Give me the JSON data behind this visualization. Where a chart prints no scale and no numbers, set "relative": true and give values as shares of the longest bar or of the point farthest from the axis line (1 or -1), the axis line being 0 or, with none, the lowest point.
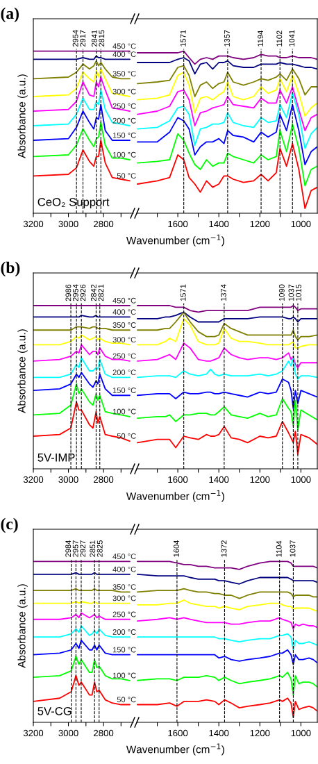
{
  "chart_data": [
    {
      "type": "line",
      "title": "(a)",
      "ylabel": "Absorbance (a.u.)",
      "annotations": [
        "CeO₂ Support"
      ],
      "relative": true,
      "tick_labels": "x",
      "grid": false,
      "line_style": "solid",
      "xlim": [
        3200,
        2630
      ],
      "xticks": [
        3200,
        {
          "value": 3100,
          "label": null
        },
        3000,
        {
          "value": 2900,
          "label": null
        },
        2800,
        {
          "value": 2700,
          "label": null
        }
      ],
      "x": [
        3200,
        3000,
        2954,
        2917,
        2880,
        2855,
        2841,
        2828,
        2815,
        2790,
        2750,
        2700,
        2650
      ],
      "ref_lines": [
        {
          "axis": "x",
          "value": 2954,
          "label": "2954",
          "line_style": "dashed",
          "color": "#000000"
        },
        {
          "axis": "x",
          "value": 2917,
          "label": "2917",
          "line_style": "dashed",
          "color": "#000000"
        },
        {
          "axis": "x",
          "value": 2841,
          "label": "2841",
          "line_style": "dashed",
          "color": "#000000"
        },
        {
          "axis": "x",
          "value": 2815,
          "label": "2815",
          "line_style": "dashed",
          "color": "#000000"
        }
      ],
      "series": [
        {
          "name": "450 °C",
          "color": "#800080",
          "values": [
            1.0,
            1.0,
            1.0,
            1.0,
            1.0,
            1.0,
            1.0,
            1.0,
            1.0,
            1.0,
            1.0,
            1.0,
            1.0
          ]
        },
        {
          "name": "400 °C",
          "color": "#000080",
          "values": [
            0.95,
            0.95,
            0.95,
            0.96,
            0.95,
            0.95,
            0.97,
            0.96,
            0.96,
            0.95,
            0.95,
            0.95,
            0.95
          ]
        },
        {
          "name": "350 °C",
          "color": "#808000",
          "values": [
            0.83,
            0.84,
            0.87,
            0.92,
            0.89,
            0.91,
            0.94,
            0.91,
            0.93,
            0.89,
            0.84,
            0.83,
            0.83
          ]
        },
        {
          "name": "300 °C",
          "color": "#ffff00",
          "values": [
            0.72,
            0.73,
            0.77,
            0.87,
            0.83,
            0.81,
            0.88,
            0.84,
            0.89,
            0.83,
            0.74,
            0.73,
            0.72
          ]
        },
        {
          "name": "250 °C",
          "color": "#ff00ff",
          "values": [
            0.63,
            0.64,
            0.69,
            0.81,
            0.73,
            0.72,
            0.81,
            0.78,
            0.84,
            0.76,
            0.65,
            0.64,
            0.63
          ]
        },
        {
          "name": "200 °C",
          "color": "#00ffff",
          "values": [
            0.54,
            0.55,
            0.61,
            0.71,
            0.64,
            0.64,
            0.69,
            0.67,
            0.76,
            0.64,
            0.56,
            0.55,
            0.54
          ]
        },
        {
          "name": "150 °C",
          "color": "#0000ff",
          "values": [
            0.45,
            0.46,
            0.53,
            0.63,
            0.56,
            0.52,
            0.59,
            0.58,
            0.67,
            0.51,
            0.45,
            0.45,
            0.45
          ]
        },
        {
          "name": "100 °C",
          "color": "#00ff00",
          "values": [
            0.35,
            0.36,
            0.42,
            0.52,
            0.45,
            0.41,
            0.46,
            0.47,
            0.56,
            0.42,
            0.34,
            0.34,
            0.33
          ]
        },
        {
          "name": "50 °C",
          "color": "#ff0000",
          "values": [
            0.23,
            0.24,
            0.28,
            0.39,
            0.32,
            0.29,
            0.35,
            0.35,
            0.45,
            0.31,
            0.22,
            0.21,
            0.2
          ]
        }
      ]
    },
    {
      "type": "line",
      "xlabel": "Wavenumber (cm$^{−1}$)",
      "relative": true,
      "tick_labels": "x",
      "grid": false,
      "line_style": "solid",
      "xlim": [
        1800,
        920
      ],
      "xticks": [
        {
          "value": 1700,
          "label": null
        },
        1600,
        {
          "value": 1500,
          "label": null
        },
        1400,
        {
          "value": 1300,
          "label": null
        },
        1200,
        {
          "value": 1100,
          "label": null
        },
        1000
      ],
      "x": [
        1797,
        1700,
        1640,
        1600,
        1571,
        1545,
        1517,
        1490,
        1460,
        1430,
        1400,
        1375,
        1357,
        1330,
        1280,
        1230,
        1194,
        1160,
        1120,
        1102,
        1070,
        1041,
        1010,
        980,
        950,
        920
      ],
      "ref_lines": [
        {
          "axis": "x",
          "value": 1571,
          "label": "1571",
          "line_style": "dashed",
          "color": "#000000"
        },
        {
          "axis": "x",
          "value": 1357,
          "label": "1357",
          "line_style": "dashed",
          "color": "#000000"
        },
        {
          "axis": "x",
          "value": 1194,
          "label": "1194",
          "line_style": "dashed",
          "color": "#000000"
        },
        {
          "axis": "x",
          "value": 1102,
          "label": "1102",
          "line_style": "dashed",
          "color": "#000000"
        },
        {
          "axis": "x",
          "value": 1041,
          "label": "1041",
          "line_style": "dashed",
          "color": "#000000"
        }
      ],
      "series": [
        {
          "color": "#800080",
          "values": [
            0.99,
            0.99,
            0.99,
            0.99,
            1.0,
            0.96,
            0.92,
            0.95,
            0.96,
            0.95,
            0.97,
            0.97,
            0.97,
            0.96,
            0.95,
            0.96,
            0.98,
            0.97,
            0.97,
            0.96,
            0.96,
            0.97,
            0.96,
            0.96,
            0.96,
            0.95
          ]
        },
        {
          "color": "#000080",
          "values": [
            0.93,
            0.93,
            0.93,
            0.95,
            0.96,
            0.94,
            0.86,
            0.92,
            0.93,
            0.89,
            0.93,
            0.93,
            0.94,
            0.91,
            0.9,
            0.9,
            0.92,
            0.92,
            0.92,
            0.93,
            0.92,
            0.92,
            0.91,
            0.9,
            0.9,
            0.89
          ]
        },
        {
          "color": "#808000",
          "values": [
            0.8,
            0.81,
            0.82,
            0.9,
            0.91,
            0.85,
            0.72,
            0.79,
            0.81,
            0.77,
            0.8,
            0.81,
            0.87,
            0.81,
            0.79,
            0.81,
            0.83,
            0.82,
            0.84,
            0.86,
            0.82,
            0.89,
            0.83,
            0.73,
            0.78,
            0.78
          ]
        },
        {
          "color": "#ffff00",
          "values": [
            0.7,
            0.71,
            0.73,
            0.85,
            0.87,
            0.79,
            0.62,
            0.71,
            0.72,
            0.7,
            0.73,
            0.75,
            0.81,
            0.72,
            0.7,
            0.72,
            0.78,
            0.74,
            0.76,
            0.83,
            0.75,
            0.85,
            0.74,
            0.6,
            0.65,
            0.68
          ]
        },
        {
          "color": "#ff00ff",
          "values": [
            0.61,
            0.63,
            0.66,
            0.75,
            0.76,
            0.7,
            0.54,
            0.62,
            0.63,
            0.65,
            0.66,
            0.67,
            0.72,
            0.67,
            0.66,
            0.65,
            0.71,
            0.68,
            0.68,
            0.76,
            0.68,
            0.78,
            0.64,
            0.51,
            0.59,
            0.61
          ]
        },
        {
          "color": "#00ffff",
          "values": [
            0.52,
            0.53,
            0.57,
            0.65,
            0.66,
            0.61,
            0.42,
            0.52,
            0.53,
            0.55,
            0.55,
            0.56,
            0.62,
            0.56,
            0.54,
            0.53,
            0.59,
            0.56,
            0.57,
            0.67,
            0.59,
            0.74,
            0.61,
            0.4,
            0.49,
            0.53
          ]
        },
        {
          "color": "#0000ff",
          "values": [
            0.44,
            0.44,
            0.5,
            0.59,
            0.57,
            0.52,
            0.36,
            0.41,
            0.44,
            0.44,
            0.46,
            0.43,
            0.51,
            0.48,
            0.47,
            0.44,
            0.5,
            0.47,
            0.5,
            0.61,
            0.51,
            0.67,
            0.51,
            0.3,
            0.38,
            0.41
          ]
        },
        {
          "color": "#00ff00",
          "values": [
            0.31,
            0.32,
            0.33,
            0.49,
            0.45,
            0.37,
            0.3,
            0.27,
            0.33,
            0.29,
            0.31,
            0.31,
            0.37,
            0.35,
            0.33,
            0.31,
            0.36,
            0.33,
            0.35,
            0.51,
            0.38,
            0.55,
            0.4,
            0.17,
            0.27,
            0.29
          ]
        },
        {
          "color": "#ff0000",
          "values": [
            0.18,
            0.2,
            0.22,
            0.36,
            0.33,
            0.22,
            0.18,
            0.13,
            0.2,
            0.16,
            0.18,
            0.23,
            0.23,
            0.21,
            0.19,
            0.2,
            0.24,
            0.2,
            0.25,
            0.4,
            0.29,
            0.43,
            0.27,
            0.03,
            0.14,
            0.16
          ]
        }
      ]
    },
    {
      "type": "line",
      "title": "(b)",
      "ylabel": "Absorbance (a.u.)",
      "annotations": [
        "5V-IMP"
      ],
      "relative": true,
      "tick_labels": "x",
      "grid": false,
      "line_style": "solid",
      "xlim": [
        3200,
        2630
      ],
      "xticks": [
        3200,
        {
          "value": 3100,
          "label": null
        },
        3000,
        {
          "value": 2900,
          "label": null
        },
        2800,
        {
          "value": 2700,
          "label": null
        }
      ],
      "x": [
        3200,
        3050,
        2986,
        2954,
        2940,
        2926,
        2880,
        2860,
        2842,
        2832,
        2821,
        2790,
        2750,
        2700,
        2650
      ],
      "ref_lines": [
        {
          "axis": "x",
          "value": 2986,
          "label": "2986",
          "line_style": "dashed",
          "color": "#000000"
        },
        {
          "axis": "x",
          "value": 2954,
          "label": "2954",
          "line_style": "dashed",
          "color": "#000000"
        },
        {
          "axis": "x",
          "value": 2926,
          "label": "2926",
          "line_style": "dashed",
          "color": "#000000"
        },
        {
          "axis": "x",
          "value": 2842,
          "label": "2842",
          "line_style": "dashed",
          "color": "#000000"
        },
        {
          "axis": "x",
          "value": 2821,
          "label": "2821",
          "line_style": "dashed",
          "color": "#000000"
        }
      ],
      "series": [
        {
          "name": "450 °C",
          "color": "#800080",
          "values": [
            1.0,
            1.0,
            1.0,
            1.0,
            1.0,
            1.0,
            1.0,
            1.0,
            1.0,
            1.0,
            1.0,
            1.0,
            1.0,
            1.0,
            1.0
          ]
        },
        {
          "name": "400 °C",
          "color": "#000080",
          "values": [
            0.93,
            0.93,
            0.93,
            0.93,
            0.93,
            0.94,
            0.93,
            0.93,
            0.94,
            0.93,
            0.93,
            0.93,
            0.93,
            0.93,
            0.93
          ]
        },
        {
          "name": "350 °C",
          "color": "#808000",
          "values": [
            0.85,
            0.85,
            0.85,
            0.87,
            0.87,
            0.87,
            0.86,
            0.87,
            0.87,
            0.86,
            0.86,
            0.86,
            0.85,
            0.85,
            0.85
          ]
        },
        {
          "name": "300 °C",
          "color": "#ffff00",
          "values": [
            0.76,
            0.76,
            0.78,
            0.81,
            0.8,
            0.82,
            0.79,
            0.8,
            0.81,
            0.79,
            0.8,
            0.78,
            0.77,
            0.77,
            0.76
          ]
        },
        {
          "name": "250 °C",
          "color": "#ff00ff",
          "values": [
            0.66,
            0.67,
            0.69,
            0.72,
            0.71,
            0.76,
            0.7,
            0.72,
            0.72,
            0.7,
            0.74,
            0.69,
            0.67,
            0.67,
            0.66
          ]
        },
        {
          "name": "200 °C",
          "color": "#00ffff",
          "values": [
            0.56,
            0.56,
            0.58,
            0.64,
            0.62,
            0.68,
            0.6,
            0.6,
            0.62,
            0.61,
            0.67,
            0.58,
            0.56,
            0.56,
            0.56
          ]
        },
        {
          "name": "150 °C",
          "color": "#0000ff",
          "values": [
            0.48,
            0.49,
            0.52,
            0.58,
            0.56,
            0.59,
            0.52,
            0.5,
            0.54,
            0.52,
            0.58,
            0.49,
            0.45,
            0.45,
            0.45
          ]
        },
        {
          "name": "100 °C",
          "color": "#00ff00",
          "values": [
            0.33,
            0.34,
            0.39,
            0.52,
            0.46,
            0.49,
            0.41,
            0.39,
            0.46,
            0.42,
            0.45,
            0.35,
            0.34,
            0.33,
            0.32
          ]
        },
        {
          "name": "50 °C",
          "color": "#ff0000",
          "values": [
            0.2,
            0.21,
            0.25,
            0.41,
            0.36,
            0.36,
            0.27,
            0.25,
            0.35,
            0.28,
            0.32,
            0.21,
            0.2,
            0.19,
            0.17
          ]
        }
      ]
    },
    {
      "type": "line",
      "xlabel": "Wavenumber (cm$^{−1}$)",
      "relative": true,
      "tick_labels": "x",
      "grid": false,
      "line_style": "solid",
      "xlim": [
        1800,
        920
      ],
      "xticks": [
        {
          "value": 1700,
          "label": null
        },
        1600,
        {
          "value": 1500,
          "label": null
        },
        1400,
        {
          "value": 1300,
          "label": null
        },
        1200,
        {
          "value": 1100,
          "label": null
        },
        1000
      ],
      "x": [
        1797,
        1700,
        1660,
        1640,
        1610,
        1571,
        1540,
        1500,
        1460,
        1440,
        1420,
        1400,
        1374,
        1340,
        1300,
        1260,
        1200,
        1160,
        1120,
        1090,
        1060,
        1048,
        1037,
        1027,
        1015,
        1000,
        960,
        920
      ],
      "ref_lines": [
        {
          "axis": "x",
          "value": 1571,
          "label": "1571",
          "line_style": "dashed",
          "color": "#000000"
        },
        {
          "axis": "x",
          "value": 1374,
          "label": "1374",
          "line_style": "dashed",
          "color": "#000000"
        },
        {
          "axis": "x",
          "value": 1090,
          "label": "1090",
          "line_style": "dashed",
          "color": "#000000"
        },
        {
          "axis": "x",
          "value": 1037,
          "label": "1037",
          "line_style": "dashed",
          "color": "#000000"
        },
        {
          "axis": "x",
          "value": 1015,
          "label": "1015",
          "line_style": "dashed",
          "color": "#000000"
        }
      ],
      "series": [
        {
          "color": "#800080",
          "values": [
            1.0,
            1.0,
            1.0,
            1.0,
            0.99,
            0.99,
            0.97,
            0.96,
            0.97,
            0.97,
            0.97,
            0.97,
            0.97,
            0.97,
            0.97,
            0.97,
            0.99,
            0.99,
            0.99,
            0.99,
            0.99,
            0.99,
            1.0,
            0.99,
            0.97,
            0.98,
            0.98,
            0.98
          ]
        },
        {
          "color": "#000080",
          "values": [
            0.92,
            0.92,
            0.93,
            0.93,
            0.94,
            0.96,
            0.93,
            0.9,
            0.9,
            0.9,
            0.9,
            0.9,
            0.92,
            0.92,
            0.92,
            0.92,
            0.93,
            0.93,
            0.93,
            0.93,
            0.92,
            0.92,
            0.93,
            0.92,
            0.9,
            0.92,
            0.92,
            0.92
          ]
        },
        {
          "color": "#808000",
          "values": [
            0.85,
            0.85,
            0.86,
            0.86,
            0.9,
            0.96,
            0.9,
            0.84,
            0.81,
            0.81,
            0.81,
            0.82,
            0.89,
            0.86,
            0.84,
            0.82,
            0.82,
            0.82,
            0.82,
            0.82,
            0.82,
            0.82,
            0.85,
            0.81,
            0.79,
            0.81,
            0.81,
            0.82
          ]
        },
        {
          "color": "#ffff00",
          "values": [
            0.76,
            0.76,
            0.78,
            0.8,
            0.78,
            0.92,
            0.88,
            0.78,
            0.76,
            0.76,
            0.76,
            0.77,
            0.86,
            0.8,
            0.78,
            0.78,
            0.77,
            0.76,
            0.76,
            0.76,
            0.76,
            0.77,
            0.78,
            0.74,
            0.74,
            0.75,
            0.76,
            0.76
          ]
        },
        {
          "color": "#ff00ff",
          "values": [
            0.66,
            0.67,
            0.69,
            0.7,
            0.67,
            0.77,
            0.74,
            0.67,
            0.66,
            0.66,
            0.67,
            0.68,
            0.74,
            0.7,
            0.68,
            0.67,
            0.68,
            0.68,
            0.67,
            0.68,
            0.71,
            0.67,
            0.69,
            0.64,
            0.62,
            0.65,
            0.65,
            0.65
          ]
        },
        {
          "color": "#00ffff",
          "values": [
            0.56,
            0.57,
            0.57,
            0.57,
            0.56,
            0.6,
            0.58,
            0.57,
            0.58,
            0.61,
            0.58,
            0.57,
            0.58,
            0.57,
            0.57,
            0.57,
            0.58,
            0.57,
            0.58,
            0.6,
            0.66,
            0.63,
            0.69,
            0.58,
            0.55,
            0.57,
            0.57,
            0.56
          ]
        },
        {
          "color": "#0000ff",
          "values": [
            0.45,
            0.46,
            0.46,
            0.46,
            0.43,
            0.47,
            0.46,
            0.46,
            0.47,
            0.47,
            0.46,
            0.46,
            0.47,
            0.46,
            0.45,
            0.44,
            0.47,
            0.46,
            0.47,
            0.55,
            0.53,
            0.48,
            0.37,
            0.48,
            0.4,
            0.48,
            0.46,
            0.44
          ]
        },
        {
          "color": "#00ff00",
          "values": [
            0.31,
            0.32,
            0.32,
            0.33,
            0.29,
            0.33,
            0.33,
            0.34,
            0.34,
            0.33,
            0.33,
            0.35,
            0.38,
            0.33,
            0.32,
            0.31,
            0.34,
            0.32,
            0.33,
            0.43,
            0.37,
            0.35,
            0.26,
            0.42,
            0.24,
            0.36,
            0.33,
            0.3
          ]
        },
        {
          "color": "#ff0000",
          "values": [
            0.16,
            0.18,
            0.18,
            0.18,
            0.13,
            0.2,
            0.19,
            0.18,
            0.21,
            0.2,
            0.2,
            0.21,
            0.26,
            0.19,
            0.18,
            0.16,
            0.2,
            0.19,
            0.2,
            0.29,
            0.22,
            0.19,
            0.16,
            0.23,
            0.09,
            0.21,
            0.19,
            0.15
          ]
        }
      ]
    },
    {
      "type": "line",
      "title": "(c)",
      "ylabel": "Absorbance (a.u.)",
      "annotations": [
        "5V-CG"
      ],
      "relative": true,
      "tick_labels": "x",
      "grid": false,
      "line_style": "solid",
      "xlim": [
        3200,
        2630
      ],
      "xticks": [
        3200,
        {
          "value": 3100,
          "label": null
        },
        3000,
        {
          "value": 2900,
          "label": null
        },
        2800,
        {
          "value": 2700,
          "label": null
        }
      ],
      "x": [
        3200,
        3050,
        2984,
        2957,
        2940,
        2927,
        2880,
        2865,
        2851,
        2838,
        2825,
        2790,
        2750,
        2700,
        2650
      ],
      "ref_lines": [
        {
          "axis": "x",
          "value": 2984,
          "label": "2984",
          "line_style": "dashed",
          "color": "#000000"
        },
        {
          "axis": "x",
          "value": 2957,
          "label": "2957",
          "line_style": "dashed",
          "color": "#000000"
        },
        {
          "axis": "x",
          "value": 2927,
          "label": "2927",
          "line_style": "dashed",
          "color": "#000000"
        },
        {
          "axis": "x",
          "value": 2851,
          "label": "2851",
          "line_style": "dashed",
          "color": "#000000"
        },
        {
          "axis": "x",
          "value": 2825,
          "label": "2825",
          "line_style": "dashed",
          "color": "#000000"
        }
      ],
      "series": [
        {
          "name": "450 °C",
          "color": "#800080",
          "values": [
            1.0,
            1.0,
            1.0,
            1.0,
            1.0,
            1.0,
            1.0,
            1.0,
            1.0,
            1.0,
            1.0,
            1.0,
            1.0,
            1.0,
            1.0
          ]
        },
        {
          "name": "400 °C",
          "color": "#000080",
          "values": [
            0.92,
            0.92,
            0.92,
            0.93,
            0.92,
            0.92,
            0.92,
            0.92,
            0.93,
            0.92,
            0.92,
            0.92,
            0.92,
            0.92,
            0.92
          ]
        },
        {
          "name": "350 °C",
          "color": "#808000",
          "values": [
            0.82,
            0.82,
            0.82,
            0.83,
            0.82,
            0.82,
            0.82,
            0.82,
            0.83,
            0.82,
            0.82,
            0.82,
            0.82,
            0.81,
            0.81
          ]
        },
        {
          "name": "300 °C",
          "color": "#ffff00",
          "values": [
            0.74,
            0.74,
            0.74,
            0.75,
            0.74,
            0.75,
            0.74,
            0.74,
            0.75,
            0.74,
            0.74,
            0.74,
            0.74,
            0.74,
            0.74
          ]
        },
        {
          "name": "250 °C",
          "color": "#ff00ff",
          "values": [
            0.64,
            0.64,
            0.65,
            0.67,
            0.65,
            0.68,
            0.65,
            0.66,
            0.67,
            0.65,
            0.66,
            0.64,
            0.64,
            0.64,
            0.64
          ]
        },
        {
          "name": "200 °C",
          "color": "#00ffff",
          "values": [
            0.53,
            0.53,
            0.55,
            0.58,
            0.56,
            0.6,
            0.54,
            0.55,
            0.57,
            0.55,
            0.58,
            0.54,
            0.53,
            0.53,
            0.53
          ]
        },
        {
          "name": "150 °C",
          "color": "#0000ff",
          "values": [
            0.42,
            0.43,
            0.45,
            0.49,
            0.46,
            0.51,
            0.45,
            0.45,
            0.48,
            0.45,
            0.48,
            0.43,
            0.42,
            0.42,
            0.42
          ]
        },
        {
          "name": "100 °C",
          "color": "#00ff00",
          "values": [
            0.28,
            0.29,
            0.32,
            0.41,
            0.36,
            0.39,
            0.31,
            0.31,
            0.39,
            0.34,
            0.35,
            0.29,
            0.27,
            0.27,
            0.26
          ]
        },
        {
          "name": "50 °C",
          "color": "#ff0000",
          "values": [
            0.13,
            0.15,
            0.19,
            0.29,
            0.23,
            0.25,
            0.17,
            0.17,
            0.25,
            0.19,
            0.2,
            0.14,
            0.12,
            0.11,
            0.11
          ]
        }
      ]
    },
    {
      "type": "line",
      "xlabel": "Wavenumber (cm$^{−1}$)",
      "relative": true,
      "tick_labels": "x",
      "grid": false,
      "line_style": "solid",
      "xlim": [
        1800,
        920
      ],
      "xticks": [
        {
          "value": 1700,
          "label": null
        },
        1600,
        {
          "value": 1500,
          "label": null
        },
        1400,
        {
          "value": 1300,
          "label": null
        },
        1200,
        {
          "value": 1100,
          "label": null
        },
        1000
      ],
      "x": [
        1797,
        1700,
        1640,
        1604,
        1570,
        1540,
        1500,
        1460,
        1420,
        1400,
        1372,
        1340,
        1300,
        1260,
        1200,
        1150,
        1104,
        1090,
        1065,
        1048,
        1037,
        1027,
        1010,
        990,
        960,
        940,
        920
      ],
      "ref_lines": [
        {
          "axis": "x",
          "value": 1604,
          "label": "1604",
          "line_style": "dashed",
          "color": "#000000"
        },
        {
          "axis": "x",
          "value": 1372,
          "label": "1372",
          "line_style": "dashed",
          "color": "#000000"
        },
        {
          "axis": "x",
          "value": 1104,
          "label": "1104",
          "line_style": "dashed",
          "color": "#000000"
        },
        {
          "axis": "x",
          "value": 1037,
          "label": "1037",
          "line_style": "dashed",
          "color": "#000000"
        }
      ],
      "series": [
        {
          "color": "#800080",
          "values": [
            1.0,
            1.0,
            1.0,
            0.99,
            0.98,
            0.98,
            0.97,
            0.97,
            0.96,
            0.96,
            0.96,
            0.96,
            0.95,
            0.97,
            0.99,
            1.0,
            1.0,
            1.0,
            1.0,
            0.99,
            0.97,
            0.97,
            0.97,
            0.97,
            0.97,
            0.97,
            0.96
          ]
        },
        {
          "color": "#000080",
          "values": [
            0.92,
            0.91,
            0.91,
            0.91,
            0.91,
            0.9,
            0.89,
            0.89,
            0.89,
            0.88,
            0.88,
            0.87,
            0.86,
            0.88,
            0.9,
            0.9,
            0.9,
            0.9,
            0.9,
            0.89,
            0.88,
            0.88,
            0.88,
            0.88,
            0.88,
            0.88,
            0.87
          ]
        },
        {
          "color": "#808000",
          "values": [
            0.81,
            0.82,
            0.82,
            0.82,
            0.83,
            0.82,
            0.81,
            0.81,
            0.8,
            0.8,
            0.79,
            0.79,
            0.77,
            0.79,
            0.81,
            0.81,
            0.81,
            0.81,
            0.81,
            0.8,
            0.78,
            0.79,
            0.79,
            0.79,
            0.79,
            0.78,
            0.78
          ]
        },
        {
          "color": "#ffff00",
          "values": [
            0.73,
            0.73,
            0.74,
            0.74,
            0.76,
            0.74,
            0.73,
            0.72,
            0.72,
            0.71,
            0.72,
            0.71,
            0.7,
            0.72,
            0.73,
            0.74,
            0.74,
            0.73,
            0.72,
            0.72,
            0.7,
            0.71,
            0.71,
            0.71,
            0.71,
            0.7,
            0.69
          ]
        },
        {
          "color": "#ff00ff",
          "values": [
            0.63,
            0.64,
            0.65,
            0.64,
            0.65,
            0.64,
            0.63,
            0.62,
            0.62,
            0.62,
            0.62,
            0.61,
            0.61,
            0.62,
            0.63,
            0.63,
            0.65,
            0.64,
            0.63,
            0.62,
            0.58,
            0.61,
            0.6,
            0.61,
            0.6,
            0.6,
            0.59
          ]
        },
        {
          "color": "#00ffff",
          "values": [
            0.53,
            0.53,
            0.53,
            0.53,
            0.53,
            0.53,
            0.53,
            0.53,
            0.53,
            0.52,
            0.52,
            0.51,
            0.5,
            0.51,
            0.52,
            0.52,
            0.54,
            0.54,
            0.55,
            0.53,
            0.45,
            0.51,
            0.49,
            0.49,
            0.5,
            0.49,
            0.48
          ]
        },
        {
          "color": "#0000ff",
          "values": [
            0.42,
            0.42,
            0.42,
            0.42,
            0.42,
            0.42,
            0.42,
            0.42,
            0.42,
            0.4,
            0.41,
            0.39,
            0.38,
            0.39,
            0.4,
            0.41,
            0.43,
            0.43,
            0.45,
            0.42,
            0.36,
            0.42,
            0.39,
            0.39,
            0.4,
            0.39,
            0.37
          ]
        },
        {
          "color": "#00ff00",
          "values": [
            0.26,
            0.27,
            0.27,
            0.26,
            0.28,
            0.28,
            0.28,
            0.29,
            0.28,
            0.26,
            0.28,
            0.26,
            0.24,
            0.25,
            0.26,
            0.27,
            0.29,
            0.28,
            0.31,
            0.27,
            0.17,
            0.29,
            0.24,
            0.25,
            0.25,
            0.24,
            0.22
          ]
        },
        {
          "color": "#ff0000",
          "values": [
            0.11,
            0.11,
            0.12,
            0.1,
            0.13,
            0.13,
            0.13,
            0.14,
            0.13,
            0.11,
            0.14,
            0.12,
            0.09,
            0.1,
            0.11,
            0.12,
            0.14,
            0.13,
            0.15,
            0.12,
            0.03,
            0.13,
            0.08,
            0.09,
            0.1,
            0.09,
            0.07
          ]
        }
      ]
    }
  ]
}
